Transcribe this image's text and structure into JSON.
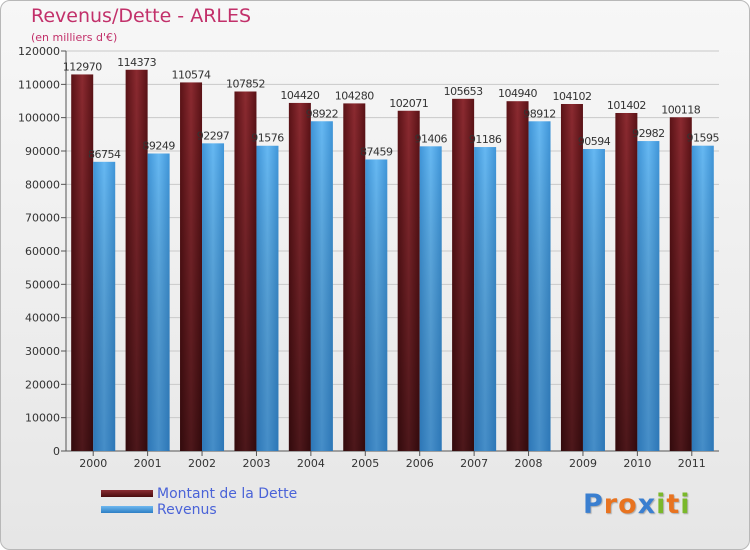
{
  "header": {
    "title": "Revenus/Dette - ARLES",
    "subtitle": "(en milliers d'€)"
  },
  "chart_data": {
    "type": "bar",
    "title": "Revenus/Dette - ARLES",
    "subtitle": "(en milliers d'€)",
    "categories": [
      "2000",
      "2001",
      "2002",
      "2003",
      "2004",
      "2005",
      "2006",
      "2007",
      "2008",
      "2009",
      "2010",
      "2011"
    ],
    "series": [
      {
        "name": "Montant de la Dette",
        "color": "#7a1f24",
        "values": [
          112970,
          114373,
          110574,
          107852,
          104420,
          104280,
          102071,
          105653,
          104940,
          104102,
          101402,
          100118
        ]
      },
      {
        "name": "Revenus",
        "color": "#4da6e8",
        "values": [
          86754,
          89249,
          92297,
          91576,
          98922,
          87459,
          91406,
          91186,
          98912,
          90594,
          92982,
          91595
        ]
      }
    ],
    "ylim": [
      0,
      120000
    ],
    "yticks": [
      0,
      10000,
      20000,
      30000,
      40000,
      50000,
      60000,
      70000,
      80000,
      90000,
      100000,
      110000,
      120000
    ],
    "grid": true,
    "legend": "bottom-left"
  },
  "legend": {
    "items": [
      {
        "label": "Montant de la Dette"
      },
      {
        "label": "Revenus"
      }
    ]
  },
  "logo": {
    "letters": [
      {
        "ch": "P",
        "color": "#3a7fd0"
      },
      {
        "ch": "r",
        "color": "#e8731f"
      },
      {
        "ch": "o",
        "color": "#e8731f"
      },
      {
        "ch": "x",
        "color": "#3a7fd0"
      },
      {
        "ch": "i",
        "color": "#7ab82b"
      },
      {
        "ch": "t",
        "color": "#e8731f"
      },
      {
        "ch": "i",
        "color": "#7ab82b"
      }
    ]
  }
}
